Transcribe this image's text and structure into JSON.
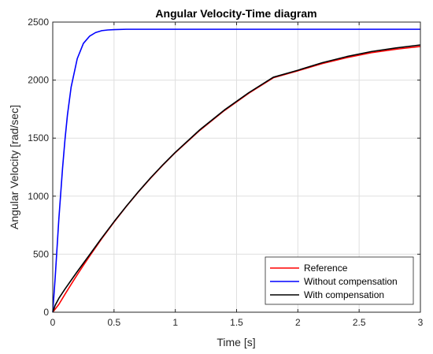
{
  "chart_data": {
    "type": "line",
    "title": "Angular Velocity-Time diagram",
    "xlabel": "Time [s]",
    "ylabel": "Angular Velocity [rad/sec]",
    "xlim": [
      0,
      3
    ],
    "ylim": [
      0,
      2500
    ],
    "xticks": [
      0,
      0.5,
      1,
      1.5,
      2,
      2.5,
      3
    ],
    "xtick_labels": [
      "0",
      "0.5",
      "1",
      "1.5",
      "2",
      "2.5",
      "3"
    ],
    "yticks": [
      0,
      500,
      1000,
      1500,
      2000,
      2500
    ],
    "ytick_labels": [
      "0",
      "500",
      "1000",
      "1500",
      "2000",
      "2500"
    ],
    "grid": true,
    "legend_position": "bottom-right",
    "series": [
      {
        "name": "Reference",
        "color": "#ff0000",
        "x": [
          0,
          0.05,
          0.1,
          0.15,
          0.2,
          0.25,
          0.3,
          0.4,
          0.5,
          0.6,
          0.7,
          0.8,
          0.9,
          1.0,
          1.2,
          1.4,
          1.6,
          1.8,
          2.0,
          2.2,
          2.4,
          2.6,
          2.8,
          3.0
        ],
        "y": [
          0,
          68,
          155,
          240,
          323,
          404,
          482,
          634,
          776,
          911,
          1038,
          1157,
          1269,
          1375,
          1567,
          1737,
          1887,
          2020,
          2080,
          2143,
          2194,
          2236,
          2266,
          2290
        ]
      },
      {
        "name": "Without compensation",
        "color": "#0000ff",
        "x": [
          0,
          0.02,
          0.05,
          0.08,
          0.1,
          0.12,
          0.15,
          0.2,
          0.25,
          0.3,
          0.35,
          0.4,
          0.45,
          0.5,
          0.6,
          0.8,
          1.0,
          1.5,
          2.0,
          2.5,
          3.0
        ],
        "y": [
          0,
          300,
          806,
          1240,
          1490,
          1700,
          1940,
          2185,
          2316,
          2378,
          2410,
          2426,
          2432,
          2435,
          2438,
          2438,
          2438,
          2438,
          2438,
          2438,
          2438
        ]
      },
      {
        "name": "With compensation",
        "color": "#000000",
        "x": [
          0,
          0.02,
          0.05,
          0.1,
          0.15,
          0.2,
          0.25,
          0.3,
          0.4,
          0.5,
          0.6,
          0.7,
          0.8,
          0.9,
          1.0,
          1.2,
          1.4,
          1.6,
          1.8,
          2.0,
          2.2,
          2.4,
          2.6,
          2.8,
          3.0
        ],
        "y": [
          0,
          60,
          120,
          200,
          275,
          350,
          422,
          494,
          640,
          780,
          913,
          1040,
          1160,
          1272,
          1378,
          1572,
          1742,
          1892,
          2025,
          2085,
          2150,
          2203,
          2246,
          2277,
          2303
        ]
      }
    ]
  }
}
